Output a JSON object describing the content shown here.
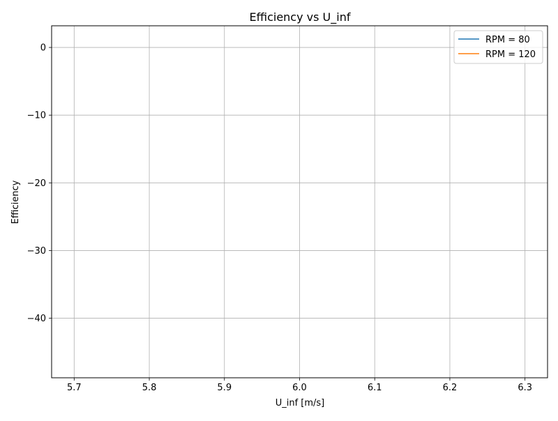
{
  "chart_data": {
    "type": "line",
    "title": "Efficiency vs U_inf",
    "xlabel": "U_inf [m/s]",
    "ylabel": "Efficiency",
    "xlim": [
      5.67,
      6.33
    ],
    "ylim": [
      -48.8,
      3.2
    ],
    "x_ticks": [
      5.7,
      5.8,
      5.9,
      6.0,
      6.1,
      6.2,
      6.3
    ],
    "x_tick_labels": [
      "5.7",
      "5.8",
      "5.9",
      "6.0",
      "6.1",
      "6.2",
      "6.3"
    ],
    "y_ticks": [
      0,
      -10,
      -20,
      -30,
      -40
    ],
    "y_tick_labels": [
      "0",
      "−10",
      "−20",
      "−30",
      "−40"
    ],
    "grid": true,
    "legend_position": "upper-right",
    "series": [
      {
        "name": "RPM = 80",
        "color": "#1f77b4",
        "x": [],
        "y": []
      },
      {
        "name": "RPM = 120",
        "color": "#ff7f0e",
        "x": [],
        "y": []
      }
    ]
  }
}
